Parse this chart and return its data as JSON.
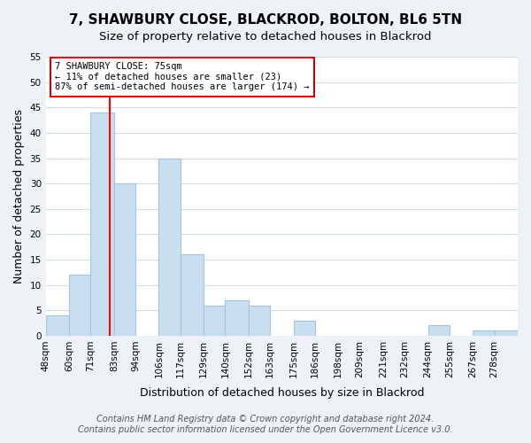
{
  "title": "7, SHAWBURY CLOSE, BLACKROD, BOLTON, BL6 5TN",
  "subtitle": "Size of property relative to detached houses in Blackrod",
  "xlabel": "Distribution of detached houses by size in Blackrod",
  "ylabel": "Number of detached properties",
  "bin_labels": [
    "48sqm",
    "60sqm",
    "71sqm",
    "83sqm",
    "94sqm",
    "106sqm",
    "117sqm",
    "129sqm",
    "140sqm",
    "152sqm",
    "163sqm",
    "175sqm",
    "186sqm",
    "198sqm",
    "209sqm",
    "221sqm",
    "232sqm",
    "244sqm",
    "255sqm",
    "267sqm",
    "278sqm"
  ],
  "bar_values": [
    4,
    12,
    44,
    30,
    0,
    35,
    16,
    6,
    7,
    6,
    0,
    3,
    0,
    0,
    0,
    0,
    0,
    2,
    0,
    1,
    1
  ],
  "bar_color": "#c8dff0",
  "bar_edge_color": "#a0c4e0",
  "vline_x": 75,
  "ylim": [
    0,
    55
  ],
  "yticks": [
    0,
    5,
    10,
    15,
    20,
    25,
    30,
    35,
    40,
    45,
    50,
    55
  ],
  "annotation_title": "7 SHAWBURY CLOSE: 75sqm",
  "annotation_line1": "← 11% of detached houses are smaller (23)",
  "annotation_line2": "87% of semi-detached houses are larger (174) →",
  "annotation_box_color": "#ffffff",
  "annotation_box_edge": "#cc0000",
  "footer_line1": "Contains HM Land Registry data © Crown copyright and database right 2024.",
  "footer_line2": "Contains public sector information licensed under the Open Government Licence v3.0.",
  "bg_color": "#eef2f7",
  "plot_bg_color": "#ffffff",
  "grid_color": "#d0dce8",
  "title_fontsize": 11,
  "subtitle_fontsize": 9.5,
  "axis_label_fontsize": 9,
  "tick_fontsize": 7.5,
  "footer_fontsize": 7,
  "bin_edges": [
    42,
    54,
    65,
    77,
    88,
    100,
    111,
    123,
    134,
    146,
    157,
    169,
    180,
    192,
    203,
    215,
    226,
    238,
    249,
    261,
    272,
    284
  ]
}
